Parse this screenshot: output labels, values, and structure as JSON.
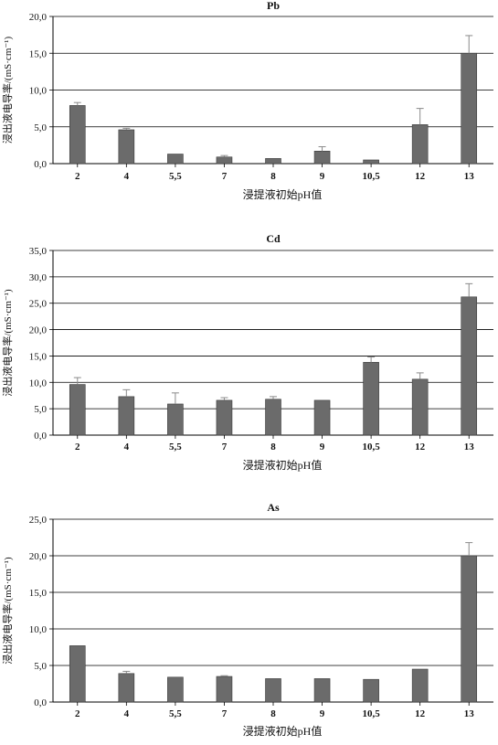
{
  "chart_data": [
    {
      "type": "bar",
      "title": "Pb",
      "xlabel": "浸提液初始pH值",
      "ylabel": "浸出液电导率/(mS·cm⁻¹)",
      "categories": [
        "2",
        "4",
        "5,5",
        "7",
        "8",
        "9",
        "10,5",
        "12",
        "13"
      ],
      "values": [
        7.9,
        4.6,
        1.3,
        0.9,
        0.7,
        1.7,
        0.5,
        5.3,
        15.0
      ],
      "errors": [
        0.4,
        0.2,
        0,
        0.2,
        0,
        0.6,
        0,
        2.2,
        2.4
      ],
      "ylim": [
        0,
        20
      ],
      "yticks": [
        "0,0",
        "5,0",
        "10,0",
        "15,0",
        "20,0"
      ],
      "grid": true
    },
    {
      "type": "bar",
      "title": "Cd",
      "xlabel": "浸提液初始pH值",
      "ylabel": "浸出液电导率/(mS·cm⁻¹)",
      "categories": [
        "2",
        "4",
        "5,5",
        "7",
        "8",
        "9",
        "10,5",
        "12",
        "13"
      ],
      "values": [
        9.6,
        7.3,
        5.9,
        6.6,
        6.8,
        6.6,
        13.8,
        10.6,
        26.2
      ],
      "errors": [
        1.3,
        1.3,
        2.1,
        0.5,
        0.5,
        0,
        1.0,
        1.2,
        2.5
      ],
      "ylim": [
        0,
        35
      ],
      "yticks": [
        "0,0",
        "5,0",
        "10,0",
        "15,0",
        "20,0",
        "25,0",
        "30,0",
        "35,0"
      ],
      "grid": true
    },
    {
      "type": "bar",
      "title": "As",
      "xlabel": "浸提液初始pH值",
      "ylabel": "浸出液电导率/(mS·cm⁻¹)",
      "categories": [
        "2",
        "4",
        "5,5",
        "7",
        "8",
        "9",
        "10,5",
        "12",
        "13"
      ],
      "values": [
        7.7,
        3.9,
        3.4,
        3.5,
        3.2,
        3.2,
        3.1,
        4.5,
        20.0
      ],
      "errors": [
        0,
        0.3,
        0,
        0.1,
        0,
        0,
        0,
        0,
        1.8
      ],
      "ylim": [
        0,
        25
      ],
      "yticks": [
        "0,0",
        "5,0",
        "10,0",
        "15,0",
        "20,0",
        "25,0"
      ],
      "grid": true
    }
  ],
  "colors": {
    "bar": "#6b6b6b",
    "bar_edge": "#3a3a3a",
    "grid": "#000000",
    "error": "#8a8a8a"
  }
}
